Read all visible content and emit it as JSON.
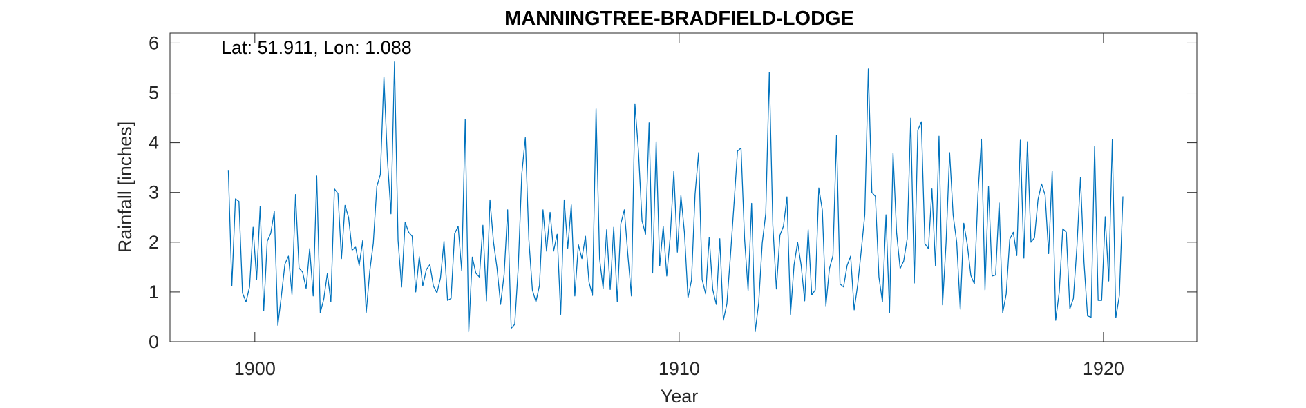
{
  "chart_data": {
    "type": "line",
    "title": "MANNINGTREE-BRADFIELD-LODGE",
    "annotation": "Lat: 51.911, Lon: 1.088",
    "xlabel": "Year",
    "ylabel": "Rainfall [inches]",
    "xlim": [
      1898,
      1922.2
    ],
    "ylim": [
      0,
      6.2
    ],
    "xticks": [
      1900,
      1910,
      1920
    ],
    "yticks": [
      0,
      1,
      2,
      3,
      4,
      5,
      6
    ],
    "grid": false,
    "series": [
      {
        "color": "#0072bd",
        "x_start": 1899.375,
        "x_step": 0.08333,
        "values": [
          3.45,
          1.12,
          2.87,
          2.82,
          0.98,
          0.8,
          1.1,
          2.3,
          1.25,
          2.72,
          0.62,
          2.02,
          2.18,
          2.62,
          0.33,
          0.92,
          1.56,
          1.72,
          0.95,
          2.96,
          1.48,
          1.4,
          1.07,
          1.87,
          0.92,
          3.33,
          0.58,
          0.86,
          1.37,
          0.8,
          3.07,
          2.98,
          1.67,
          2.74,
          2.5,
          1.84,
          1.9,
          1.53,
          2.03,
          0.59,
          1.42,
          1.98,
          3.12,
          3.36,
          5.32,
          3.65,
          2.57,
          5.62,
          2.04,
          1.1,
          2.4,
          2.2,
          2.12,
          1.0,
          1.71,
          1.12,
          1.45,
          1.55,
          1.12,
          0.98,
          1.28,
          2.02,
          0.83,
          0.87,
          2.17,
          2.32,
          1.43,
          4.47,
          0.2,
          1.7,
          1.38,
          1.3,
          2.34,
          0.82,
          2.85,
          2.0,
          1.48,
          0.75,
          1.35,
          2.65,
          0.27,
          0.35,
          1.5,
          3.37,
          4.1,
          2.05,
          1.04,
          0.8,
          1.13,
          2.65,
          1.82,
          2.6,
          1.82,
          2.16,
          0.55,
          2.85,
          1.88,
          2.75,
          0.92,
          1.95,
          1.67,
          2.12,
          1.2,
          0.93,
          4.68,
          1.67,
          1.07,
          2.25,
          1.05,
          2.3,
          0.8,
          2.37,
          2.65,
          1.74,
          0.92,
          4.78,
          3.82,
          2.43,
          2.16,
          4.4,
          1.38,
          4.02,
          1.52,
          2.32,
          1.32,
          2.13,
          3.42,
          1.8,
          2.94,
          2.19,
          0.88,
          1.24,
          2.96,
          3.8,
          1.25,
          0.96,
          2.1,
          1.05,
          0.75,
          2.07,
          0.43,
          0.76,
          1.72,
          2.75,
          3.83,
          3.89,
          2.07,
          1.03,
          2.78,
          0.2,
          0.78,
          1.98,
          2.58,
          5.41,
          2.34,
          1.06,
          2.14,
          2.32,
          2.91,
          0.55,
          1.54,
          2.0,
          1.54,
          0.82,
          2.25,
          0.94,
          1.04,
          3.09,
          2.64,
          0.72,
          1.47,
          1.73,
          4.15,
          1.16,
          1.1,
          1.53,
          1.72,
          0.64,
          1.15,
          1.83,
          2.55,
          5.48,
          3.0,
          2.92,
          1.3,
          0.8,
          2.55,
          0.58,
          3.79,
          2.19,
          1.47,
          1.62,
          2.07,
          4.49,
          1.18,
          4.25,
          4.42,
          1.97,
          1.87,
          3.07,
          1.52,
          4.13,
          0.74,
          2.0,
          3.8,
          2.54,
          2.0,
          0.65,
          2.38,
          1.95,
          1.33,
          1.16,
          2.95,
          4.07,
          1.04,
          3.12,
          1.32,
          1.34,
          2.79,
          0.58,
          0.96,
          2.06,
          2.2,
          1.73,
          4.05,
          1.68,
          4.02,
          2.0,
          2.09,
          2.86,
          3.17,
          2.95,
          1.77,
          3.43,
          0.43,
          1.0,
          2.27,
          2.2,
          0.66,
          0.87,
          1.91,
          3.3,
          1.6,
          0.52,
          0.49,
          3.92,
          0.83,
          0.83,
          2.51,
          1.22,
          4.06,
          0.48,
          0.93,
          2.92
        ]
      }
    ]
  }
}
